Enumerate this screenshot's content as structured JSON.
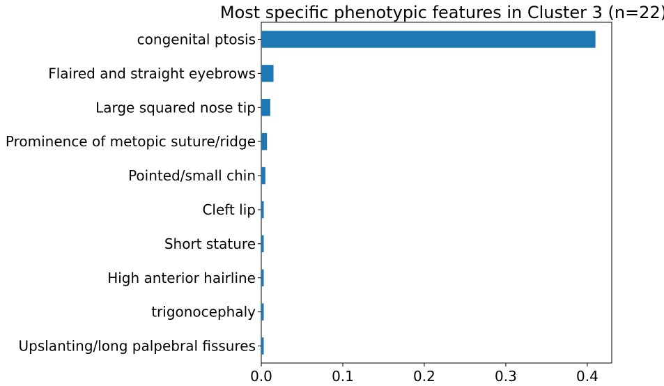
{
  "chart_data": {
    "type": "bar",
    "orientation": "horizontal",
    "title": "Most specific phenotypic features in Cluster 3 (n=22)",
    "xlabel": "",
    "ylabel": "",
    "categories": [
      "congenital ptosis",
      "Flaired and straight eyebrows",
      "Large squared nose tip",
      "Prominence of metopic suture/ridge",
      "Pointed/small chin",
      "Cleft lip",
      "Short stature",
      "High anterior hairline",
      "trigonocephaly",
      "Upslanting/long palpebral fissures"
    ],
    "values": [
      0.41,
      0.015,
      0.011,
      0.007,
      0.005,
      0.003,
      0.003,
      0.003,
      0.003,
      0.003
    ],
    "xlim": [
      0.0,
      0.43
    ],
    "xticks": [
      "0.0",
      "0.1",
      "0.2",
      "0.3",
      "0.4"
    ],
    "bar_color": "#1f77b4",
    "grid": false
  }
}
